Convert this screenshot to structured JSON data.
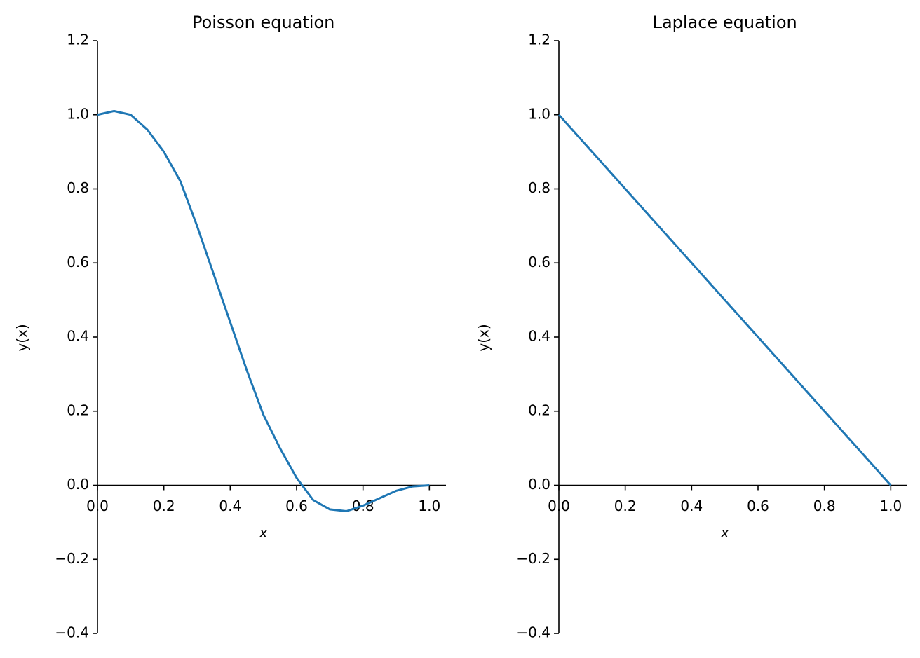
{
  "chart_data": [
    {
      "type": "line",
      "title": "Poisson equation",
      "x_label": "x",
      "y_label": "y(x)",
      "series": [
        {
          "color": "#1f77b4",
          "x": [
            0,
            0.05,
            0.1,
            0.15,
            0.2,
            0.25,
            0.3,
            0.35,
            0.4,
            0.45,
            0.5,
            0.55,
            0.6,
            0.65,
            0.7,
            0.75,
            0.8,
            0.85,
            0.9,
            0.95,
            1.0
          ],
          "values": [
            1.0,
            1.01,
            1.0,
            0.96,
            0.9,
            0.82,
            0.7,
            0.57,
            0.44,
            0.31,
            0.19,
            0.1,
            0.02,
            -0.04,
            -0.065,
            -0.07,
            -0.055,
            -0.035,
            -0.015,
            -0.003,
            0
          ]
        }
      ],
      "xlim": [
        0,
        1.05
      ],
      "ylim": [
        -0.4,
        1.2
      ],
      "xticks": [
        {
          "value": 0,
          "label": "0.0"
        },
        0.2,
        0.4,
        0.6,
        0.8,
        {
          "value": 1,
          "label": "1.0"
        }
      ],
      "yticks": [
        {
          "value": -0.4,
          "label": "−0.4"
        },
        {
          "value": -0.2,
          "label": "−0.2"
        },
        {
          "value": 0,
          "label": "0.0"
        },
        0.2,
        0.4,
        0.6,
        0.8,
        {
          "value": 1,
          "label": "1.0"
        },
        1.2
      ]
    },
    {
      "type": "line",
      "title": "Laplace equation",
      "x_label": "x",
      "y_label": "y(x)",
      "series": [
        {
          "color": "#1f77b4",
          "x": [
            0,
            1.0
          ],
          "values": [
            1.0,
            0
          ]
        }
      ],
      "xlim": [
        0,
        1.05
      ],
      "ylim": [
        -0.4,
        1.2
      ],
      "xticks": [
        {
          "value": 0,
          "label": "0.0"
        },
        0.2,
        0.4,
        0.6,
        0.8,
        {
          "value": 1,
          "label": "1.0"
        }
      ],
      "yticks": [
        {
          "value": -0.4,
          "label": "−0.4"
        },
        {
          "value": -0.2,
          "label": "−0.2"
        },
        {
          "value": 0,
          "label": "0.0"
        },
        0.2,
        0.4,
        0.6,
        0.8,
        {
          "value": 1,
          "label": "1.0"
        },
        1.2
      ]
    }
  ]
}
